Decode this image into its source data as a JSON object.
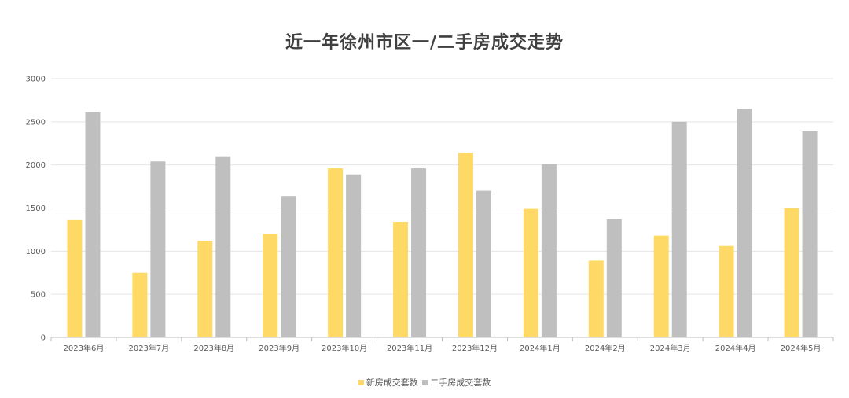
{
  "colors": {
    "series_new": "#FFD966",
    "series_second": "#BFBFBF",
    "grid": "#E5E5E5",
    "axis": "#BFBFBF"
  },
  "chart_data": {
    "type": "bar",
    "title": "近一年徐州市区一/二手房成交走势",
    "xlabel": "",
    "ylabel": "",
    "ylim": [
      0,
      3000
    ],
    "yticks": [
      0,
      500,
      1000,
      1500,
      2000,
      2500,
      3000
    ],
    "grid": true,
    "legend_position": "bottom",
    "categories": [
      "2023年6月",
      "2023年7月",
      "2023年8月",
      "2023年9月",
      "2023年10月",
      "2023年11月",
      "2023年12月",
      "2024年1月",
      "2024年2月",
      "2024年3月",
      "2024年4月",
      "2024年5月"
    ],
    "series": [
      {
        "name": "新房成交套数",
        "values": [
          1360,
          750,
          1120,
          1200,
          1960,
          1340,
          2140,
          1490,
          890,
          1180,
          1060,
          1500
        ]
      },
      {
        "name": "二手房成交套数",
        "values": [
          2610,
          2040,
          2100,
          1640,
          1890,
          1960,
          1700,
          2010,
          1370,
          2500,
          2650,
          2390
        ]
      }
    ]
  }
}
